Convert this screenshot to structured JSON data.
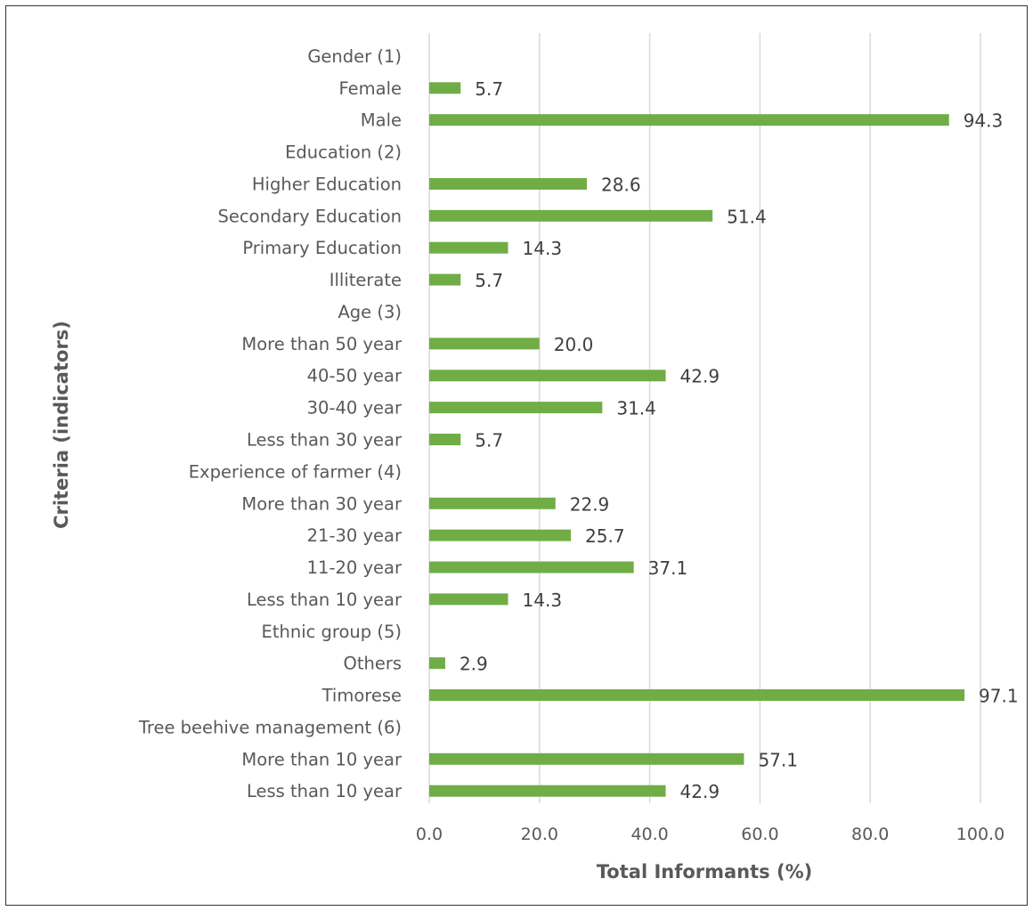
{
  "chart_data": {
    "type": "bar",
    "orientation": "horizontal",
    "xlabel": "Total Informants (%)",
    "ylabel": "Criteria (indicators)",
    "xlim": [
      0,
      120
    ],
    "xticks": [
      "0.0",
      "20.0",
      "40.0",
      "60.0",
      "80.0",
      "100.0",
      "120.0"
    ],
    "grid": "vertical",
    "bar_color": "#70AD47",
    "categories": [
      "Gender (1)",
      "Female",
      "Male",
      "Education (2)",
      "Higher Education",
      "Secondary Education",
      "Primary Education",
      "Illiterate",
      "Age (3)",
      "More than 50 year",
      "40-50 year",
      "30-40 year",
      "Less than 30 year",
      "Experience of farmer (4)",
      "More than 30 year",
      "21-30 year",
      "11-20 year",
      "Less than 10 year",
      "Ethnic group (5)",
      "Others",
      "Timorese",
      "Tree beehive management (6)",
      "More than 10 year",
      "Less than 10 year"
    ],
    "values": [
      null,
      5.7,
      94.3,
      null,
      28.6,
      51.4,
      14.3,
      5.7,
      null,
      20.0,
      42.9,
      31.4,
      5.7,
      null,
      22.9,
      25.7,
      37.1,
      14.3,
      null,
      2.9,
      97.1,
      null,
      57.1,
      42.9
    ],
    "data_labels": [
      "",
      "5.7",
      "94.3",
      "",
      "28.6",
      "51.4",
      "14.3",
      "5.7",
      "",
      "20.0",
      "42.9",
      "31.4",
      "5.7",
      "",
      "22.9",
      "25.7",
      "37.1",
      "14.3",
      "",
      "2.9",
      "97.1",
      "",
      "57.1",
      "42.9"
    ]
  }
}
